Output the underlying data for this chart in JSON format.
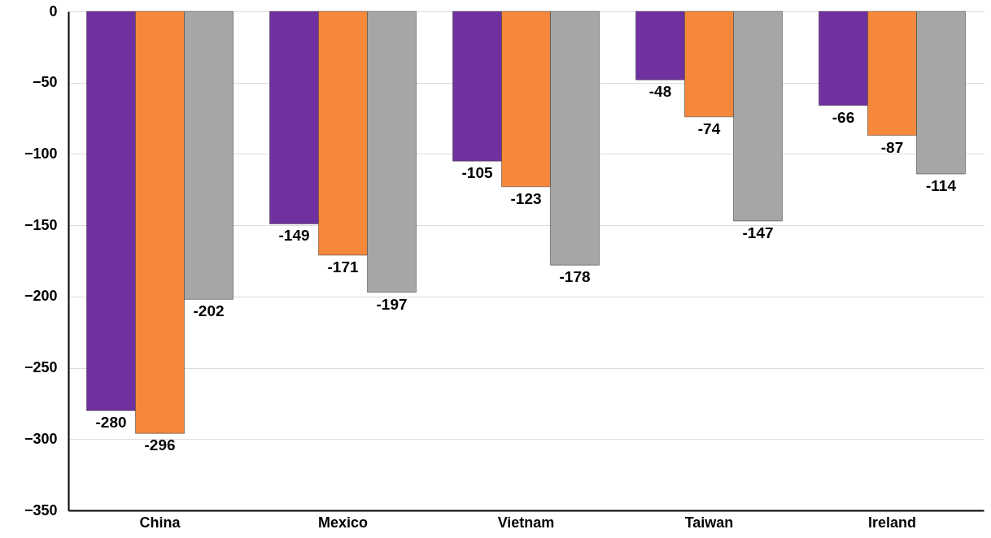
{
  "chart_data": {
    "type": "bar",
    "categories": [
      "China",
      "Mexico",
      "Vietnam",
      "Taiwan",
      "Ireland"
    ],
    "series": [
      {
        "color": "#7030a0",
        "values": [
          -280,
          -149,
          -105,
          -48,
          -66
        ]
      },
      {
        "color": "#f5883a",
        "values": [
          -296,
          -171,
          -123,
          -74,
          -87
        ]
      },
      {
        "color": "#a6a6a6",
        "values": [
          -202,
          -197,
          -178,
          -147,
          -114
        ]
      }
    ],
    "ylim": [
      -350,
      0
    ],
    "yticks": [
      0,
      -50,
      -100,
      -150,
      -200,
      -250,
      -300,
      -350
    ],
    "grid": "y",
    "data_labels": true
  }
}
